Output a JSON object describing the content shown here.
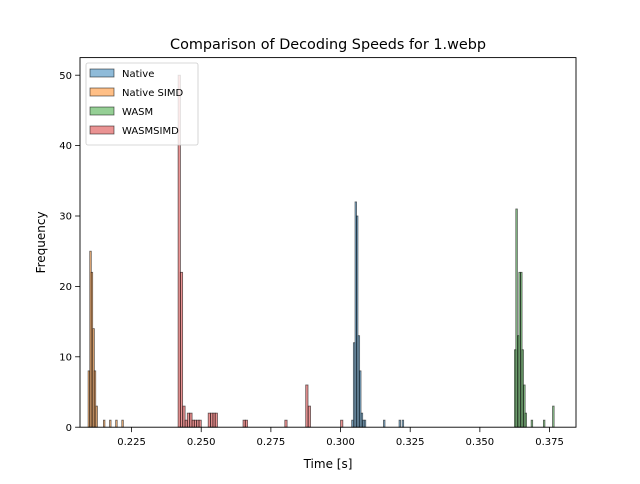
{
  "chart_data": {
    "type": "histogram",
    "title": "Comparison of Decoding Speeds for 1.webp",
    "xlabel": "Time [s]",
    "ylabel": "Frequency",
    "xlim": [
      0.2065,
      0.3845
    ],
    "ylim": [
      0,
      52.5
    ],
    "xticks": [
      0.225,
      0.25,
      0.275,
      0.3,
      0.325,
      0.35,
      0.375
    ],
    "xtick_labels": [
      "0.225",
      "0.250",
      "0.275",
      "0.300",
      "0.325",
      "0.350",
      "0.375"
    ],
    "yticks": [
      0,
      10,
      20,
      30,
      40,
      50
    ],
    "ytick_labels": [
      "0",
      "10",
      "20",
      "30",
      "40",
      "50"
    ],
    "grid": false,
    "legend_position": "upper-left",
    "series": [
      {
        "name": "Native",
        "color": "#1f77b4",
        "bin_width": 0.00055,
        "bins": [
          {
            "x": 0.304,
            "y": 1
          },
          {
            "x": 0.3046,
            "y": 12
          },
          {
            "x": 0.3052,
            "y": 32
          },
          {
            "x": 0.3057,
            "y": 30
          },
          {
            "x": 0.3063,
            "y": 13
          },
          {
            "x": 0.3068,
            "y": 8
          },
          {
            "x": 0.3074,
            "y": 2
          },
          {
            "x": 0.3079,
            "y": 1
          },
          {
            "x": 0.3085,
            "y": 1
          },
          {
            "x": 0.3154,
            "y": 1
          },
          {
            "x": 0.321,
            "y": 1
          },
          {
            "x": 0.3221,
            "y": 1
          }
        ]
      },
      {
        "name": "Native SIMD",
        "color": "#ff7f0e",
        "bin_width": 0.00055,
        "bins": [
          {
            "x": 0.2094,
            "y": 8
          },
          {
            "x": 0.21,
            "y": 25
          },
          {
            "x": 0.2105,
            "y": 22
          },
          {
            "x": 0.2111,
            "y": 14
          },
          {
            "x": 0.2116,
            "y": 8
          },
          {
            "x": 0.2122,
            "y": 3
          },
          {
            "x": 0.2149,
            "y": 1
          },
          {
            "x": 0.2171,
            "y": 1
          },
          {
            "x": 0.2193,
            "y": 1
          },
          {
            "x": 0.2215,
            "y": 1
          }
        ]
      },
      {
        "name": "WASM",
        "color": "#2ca02c",
        "bin_width": 0.00055,
        "bins": [
          {
            "x": 0.3624,
            "y": 11
          },
          {
            "x": 0.3629,
            "y": 31
          },
          {
            "x": 0.3635,
            "y": 13
          },
          {
            "x": 0.364,
            "y": 22
          },
          {
            "x": 0.3646,
            "y": 22
          },
          {
            "x": 0.3651,
            "y": 11
          },
          {
            "x": 0.3657,
            "y": 6
          },
          {
            "x": 0.3662,
            "y": 2
          },
          {
            "x": 0.3684,
            "y": 1
          },
          {
            "x": 0.3728,
            "y": 1
          },
          {
            "x": 0.3761,
            "y": 3
          }
        ]
      },
      {
        "name": "WASMSIMD",
        "color": "#d62728",
        "bin_width": 0.00083,
        "bins": [
          {
            "x": 0.2417,
            "y": 50
          },
          {
            "x": 0.2425,
            "y": 22
          },
          {
            "x": 0.2434,
            "y": 3
          },
          {
            "x": 0.2442,
            "y": 1
          },
          {
            "x": 0.245,
            "y": 2
          },
          {
            "x": 0.2459,
            "y": 2
          },
          {
            "x": 0.2467,
            "y": 1
          },
          {
            "x": 0.2475,
            "y": 1
          },
          {
            "x": 0.2484,
            "y": 1
          },
          {
            "x": 0.2492,
            "y": 1
          },
          {
            "x": 0.2525,
            "y": 2
          },
          {
            "x": 0.2534,
            "y": 2
          },
          {
            "x": 0.2542,
            "y": 2
          },
          {
            "x": 0.255,
            "y": 2
          },
          {
            "x": 0.265,
            "y": 1
          },
          {
            "x": 0.2658,
            "y": 1
          },
          {
            "x": 0.28,
            "y": 1
          },
          {
            "x": 0.2875,
            "y": 6
          },
          {
            "x": 0.2884,
            "y": 3
          },
          {
            "x": 0.3,
            "y": 1
          }
        ]
      }
    ]
  }
}
